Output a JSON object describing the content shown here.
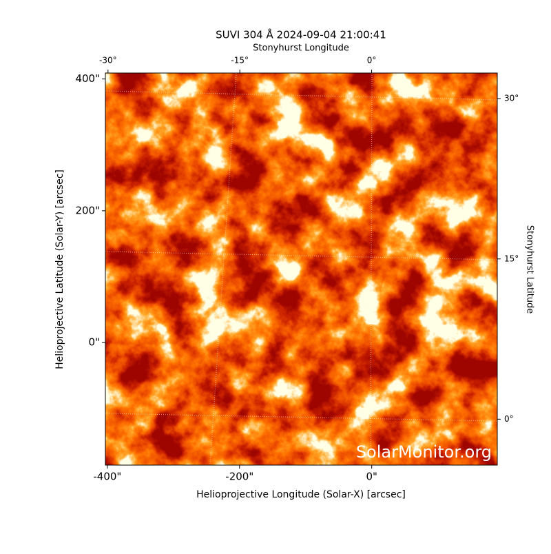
{
  "chart_data": {
    "type": "image",
    "title": "SUVI 304 Å 2024-09-04 21:00:41",
    "x_label": "Helioprojective Longitude (Solar-X) [arcsec]",
    "y_label": "Helioprojective Latitude (Solar-Y) [arcsec]",
    "x2_label": "Stonyhurst Longitude",
    "y2_label": "Stonyhurst Latitude",
    "xlim": [
      -403,
      190
    ],
    "ylim": [
      -186,
      409
    ],
    "xticks": [
      {
        "value": -400,
        "label": "-400\""
      },
      {
        "value": -200,
        "label": "-200\""
      },
      {
        "value": 0,
        "label": "0\""
      }
    ],
    "yticks": [
      {
        "value": 0,
        "label": "0\""
      },
      {
        "value": 200,
        "label": "200\""
      },
      {
        "value": 400,
        "label": "400\""
      }
    ],
    "x2lim": [
      -30.3,
      14.3
    ],
    "x2ticks": [
      {
        "value": -30,
        "label": "-30°"
      },
      {
        "value": -15,
        "label": "-15°"
      },
      {
        "value": 0,
        "label": "0°"
      }
    ],
    "y2lim": [
      -4.3,
      32.4
    ],
    "y2ticks": [
      {
        "value": 0,
        "label": "0°"
      },
      {
        "value": 15,
        "label": "15°"
      },
      {
        "value": 30,
        "label": "30°"
      }
    ],
    "watermark": "SolarMonitor.org"
  }
}
